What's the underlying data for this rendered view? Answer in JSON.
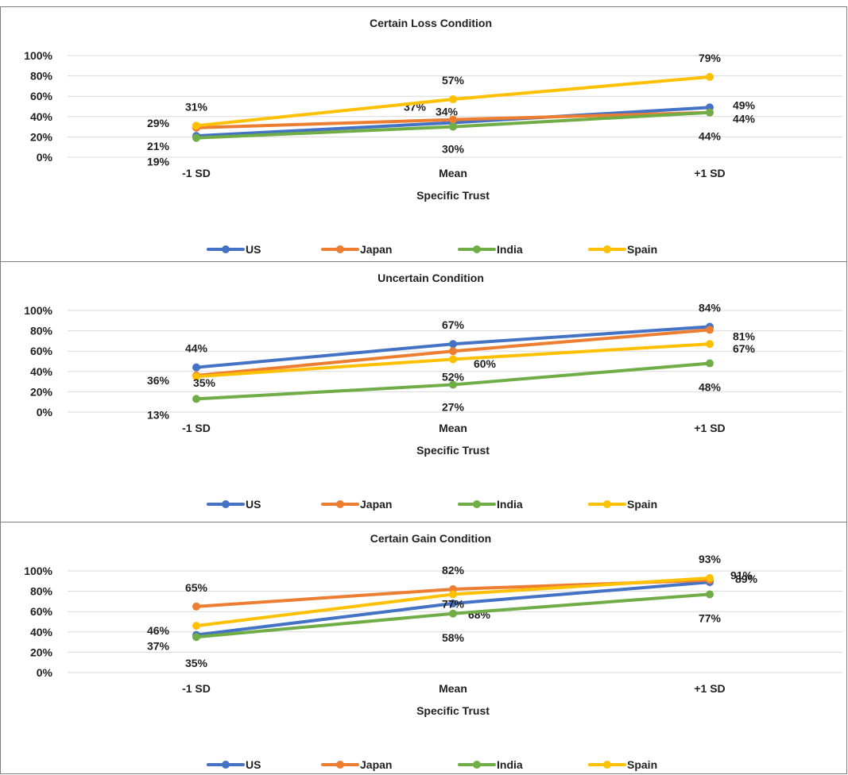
{
  "series_colors": {
    "US": "#4472C4",
    "Japan": "#ED7D31",
    "India": "#70AD47",
    "Spain": "#FFC000"
  },
  "chart_data": [
    {
      "type": "line",
      "title": "Certain Loss Condition",
      "xlabel": "Specific Trust",
      "ylabel": "",
      "categories": [
        "-1 SD",
        "Mean",
        "+1 SD"
      ],
      "ylim": [
        0,
        100
      ],
      "yticks": [
        "0%",
        "20%",
        "40%",
        "60%",
        "80%",
        "100%"
      ],
      "grid": true,
      "legend": "bottom",
      "series": [
        {
          "name": "US",
          "values": [
            21,
            34,
            49
          ],
          "labels": [
            "21%",
            "34%",
            "49%"
          ]
        },
        {
          "name": "Japan",
          "values": [
            29,
            37,
            44
          ],
          "labels": [
            "29%",
            "37%",
            "44%"
          ]
        },
        {
          "name": "India",
          "values": [
            19,
            30,
            44
          ],
          "labels": [
            "19%",
            "30%",
            "44%"
          ]
        },
        {
          "name": "Spain",
          "values": [
            31,
            57,
            79
          ],
          "labels": [
            "31%",
            "57%",
            "79%"
          ]
        }
      ]
    },
    {
      "type": "line",
      "title": "Uncertain Condition",
      "xlabel": "Specific Trust",
      "ylabel": "",
      "categories": [
        "-1 SD",
        "Mean",
        "+1 SD"
      ],
      "ylim": [
        0,
        100
      ],
      "yticks": [
        "0%",
        "20%",
        "40%",
        "60%",
        "80%",
        "100%"
      ],
      "grid": true,
      "legend": "bottom",
      "series": [
        {
          "name": "US",
          "values": [
            44,
            67,
            84
          ],
          "labels": [
            "44%",
            "67%",
            "84%"
          ]
        },
        {
          "name": "Japan",
          "values": [
            36,
            60,
            81
          ],
          "labels": [
            "36%",
            "60%",
            "81%"
          ]
        },
        {
          "name": "India",
          "values": [
            13,
            27,
            48
          ],
          "labels": [
            "13%",
            "27%",
            "48%"
          ]
        },
        {
          "name": "Spain",
          "values": [
            35,
            52,
            67
          ],
          "labels": [
            "35%",
            "52%",
            "67%"
          ]
        }
      ]
    },
    {
      "type": "line",
      "title": "Certain Gain Condition",
      "xlabel": "Specific Trust",
      "ylabel": "",
      "categories": [
        "-1 SD",
        "Mean",
        "+1 SD"
      ],
      "ylim": [
        0,
        100
      ],
      "yticks": [
        "0%",
        "20%",
        "40%",
        "60%",
        "80%",
        "100%"
      ],
      "grid": true,
      "legend": "bottom",
      "series": [
        {
          "name": "US",
          "values": [
            37,
            68,
            89
          ],
          "labels": [
            "37%",
            "68%",
            "89%"
          ]
        },
        {
          "name": "Japan",
          "values": [
            65,
            82,
            91
          ],
          "labels": [
            "65%",
            "82%",
            "91%"
          ]
        },
        {
          "name": "India",
          "values": [
            35,
            58,
            77
          ],
          "labels": [
            "35%",
            "58%",
            "77%"
          ]
        },
        {
          "name": "Spain",
          "values": [
            46,
            77,
            93
          ],
          "labels": [
            "46%",
            "77%",
            "93%"
          ]
        }
      ]
    }
  ]
}
